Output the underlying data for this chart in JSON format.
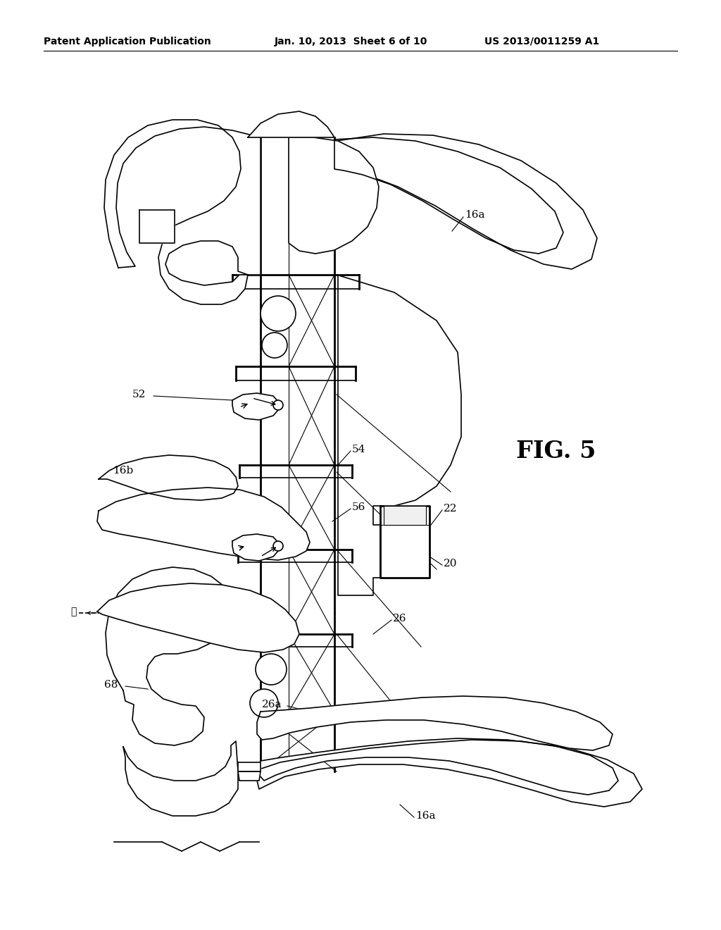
{
  "background_color": "#ffffff",
  "line_color": "#000000",
  "title_left": "Patent Application Publication",
  "title_center": "Jan. 10, 2013  Sheet 6 of 10",
  "title_right": "US 2013/0011259 A1",
  "fig_label": "FIG. 5",
  "labels": {
    "16a_top": "16a",
    "16b": "16b",
    "52": "52",
    "54": "54",
    "56": "56",
    "22": "22",
    "20": "20",
    "26": "26",
    "26a": "26a",
    "68": "68",
    "16a_bottom": "16a"
  },
  "header_fontsize": 10,
  "fig_label_fontsize": 24,
  "annotation_fontsize": 11
}
